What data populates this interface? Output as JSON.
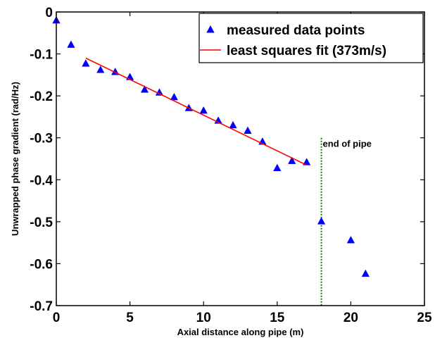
{
  "chart_data": {
    "type": "scatter",
    "title": "",
    "xlabel": "Axial distance along pipe (m)",
    "ylabel": "Unwrapped phase gradient (rad/Hz)",
    "xlim": [
      0,
      25
    ],
    "ylim": [
      -0.7,
      0
    ],
    "x_ticks": [
      0,
      5,
      10,
      15,
      20,
      25
    ],
    "y_ticks": [
      0,
      -0.1,
      -0.2,
      -0.3,
      -0.4,
      -0.5,
      -0.6,
      -0.7
    ],
    "x_tick_labels": [
      "0",
      "5",
      "10",
      "15",
      "20",
      "25"
    ],
    "y_tick_labels": [
      "0",
      "-0.1",
      "-0.2",
      "-0.3",
      "-0.4",
      "-0.5",
      "-0.6",
      "-0.7"
    ],
    "grid": false,
    "legend_position": "top-right",
    "series": [
      {
        "name": "measured data points",
        "kind": "scatter",
        "marker": "triangle",
        "color": "#0000ff",
        "x": [
          0,
          1,
          2,
          3,
          4,
          5,
          6,
          7,
          8,
          9,
          10,
          11,
          12,
          13,
          14,
          15,
          16,
          17,
          18,
          20,
          21
        ],
        "y": [
          -0.02,
          -0.078,
          -0.123,
          -0.138,
          -0.143,
          -0.155,
          -0.185,
          -0.192,
          -0.203,
          -0.229,
          -0.235,
          -0.259,
          -0.27,
          -0.283,
          -0.309,
          -0.372,
          -0.355,
          -0.358,
          -0.499,
          -0.544,
          -0.624
        ]
      },
      {
        "name": "least squares fit (373m/s)",
        "kind": "line",
        "color": "#ff0000",
        "x": [
          2,
          17
        ],
        "y": [
          -0.11,
          -0.365
        ]
      }
    ],
    "annotations": [
      {
        "text": "end of pipe",
        "kind": "vertical-line",
        "x": 18,
        "y_from": -0.3,
        "y_to": -0.7,
        "color": "#008000",
        "style": "dotted"
      }
    ]
  }
}
